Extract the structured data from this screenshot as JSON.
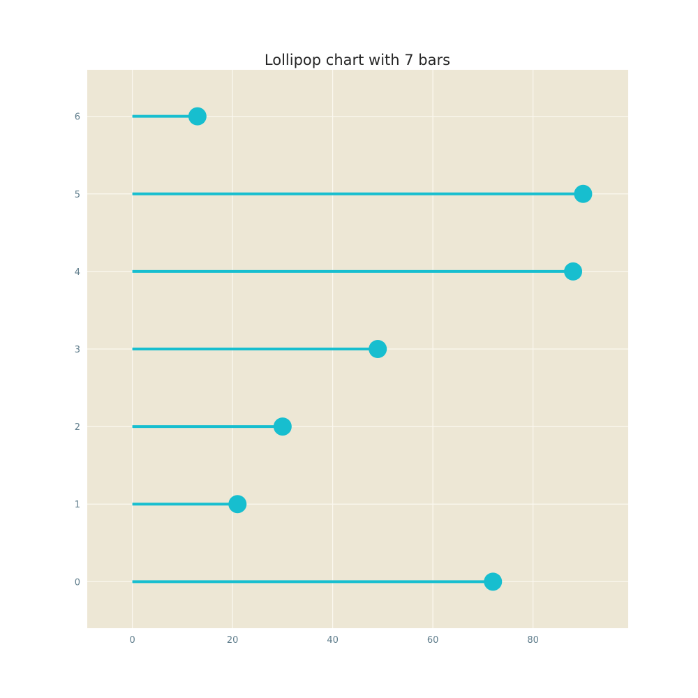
{
  "chart_data": {
    "type": "lollipop",
    "orientation": "horizontal",
    "title": "Lollipop chart with 7 bars",
    "categories": [
      "0",
      "1",
      "2",
      "3",
      "4",
      "5",
      "6"
    ],
    "values": [
      72,
      21,
      30,
      49,
      88,
      90,
      13
    ],
    "xlim": [
      -9,
      99
    ],
    "ylim": [
      -0.6,
      6.6
    ],
    "x_ticks": [
      "0",
      "20",
      "40",
      "60",
      "80"
    ],
    "y_ticks": [
      "0",
      "1",
      "2",
      "3",
      "4",
      "5",
      "6"
    ],
    "grid": true,
    "colors": {
      "plot_background": "#ede7d5",
      "grid": "#fbf8f0",
      "stem": "#17becf",
      "marker": "#17becf",
      "tick_text": "#5f7d8c",
      "title_text": "#262626"
    }
  }
}
